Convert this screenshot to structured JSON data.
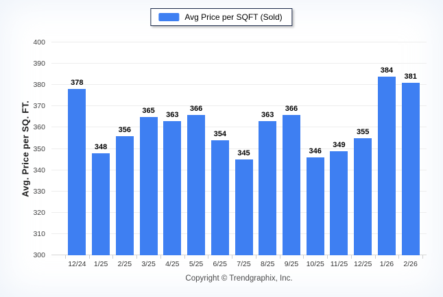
{
  "legend": {
    "label": "Avg Price per SQFT (Sold)"
  },
  "y_axis": {
    "title": "Avg. Price per SQ. FT."
  },
  "footer": {
    "copyright": "Copyright © Trendgraphix, Inc."
  },
  "colors": {
    "bar": "#3e7ff2",
    "legend_border": "#1b2949"
  },
  "chart_data": {
    "type": "bar",
    "title": "",
    "series_name": "Avg Price per SQFT (Sold)",
    "categories": [
      "12/24",
      "1/25",
      "2/25",
      "3/25",
      "4/25",
      "5/25",
      "6/25",
      "7/25",
      "8/25",
      "9/25",
      "10/25",
      "11/25",
      "12/25",
      "1/26",
      "2/26"
    ],
    "values": [
      378,
      348,
      356,
      365,
      363,
      366,
      354,
      345,
      363,
      366,
      346,
      349,
      355,
      384,
      381
    ],
    "xlabel": "",
    "ylabel": "Avg. Price per SQ. FT.",
    "ylim": [
      300,
      400
    ],
    "ytick_step": 10,
    "grid": true,
    "legend_position": "top-center",
    "bar_color": "#3e7ff2",
    "value_labels": true
  }
}
